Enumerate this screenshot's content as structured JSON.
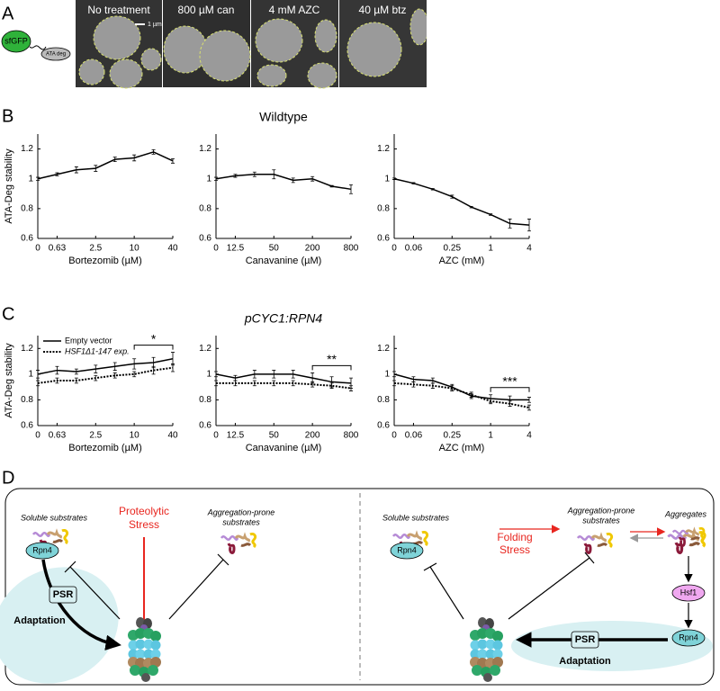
{
  "panel_labels": [
    "A",
    "B",
    "C",
    "D"
  ],
  "panel_a": {
    "construct": {
      "fp": "sfGFP",
      "degron": "ATA deg"
    },
    "images": [
      {
        "title": "No treatment"
      },
      {
        "title": "800 µM can"
      },
      {
        "title": "4 mM AZC"
      },
      {
        "title": "40 µM btz"
      }
    ],
    "scale_bar": "1 µm"
  },
  "chart_data": [
    {
      "type": "line",
      "ylabel": "ATA-Deg stability",
      "xlabel": "Bortezomib (µM)",
      "categories": [
        "0",
        "0.63",
        null,
        "2.5",
        null,
        "10",
        null,
        "40"
      ],
      "ylim": [
        0.6,
        1.3
      ],
      "yticks": [
        0.6,
        0.8,
        1,
        1.2
      ],
      "series": [
        {
          "name": "Wildtype",
          "color": "#000000",
          "style": "solid",
          "values": [
            1.0,
            1.03,
            1.06,
            1.07,
            1.13,
            1.14,
            1.18,
            1.12
          ],
          "errors": [
            0.01,
            0.01,
            0.02,
            0.02,
            0.015,
            0.02,
            0.015,
            0.015
          ]
        }
      ]
    },
    {
      "type": "line",
      "title": "Wildtype",
      "xlabel": "Canavanine (µM)",
      "categories": [
        "0",
        "12.5",
        null,
        "50",
        null,
        "200",
        null,
        "800"
      ],
      "ylim": [
        0.6,
        1.3
      ],
      "yticks": [
        0.6,
        0.8,
        1,
        1.2
      ],
      "series": [
        {
          "name": "Wildtype",
          "color": "#000000",
          "style": "solid",
          "values": [
            1.0,
            1.02,
            1.03,
            1.03,
            0.99,
            1.0,
            0.95,
            0.93
          ],
          "errors": [
            0.01,
            0.01,
            0.015,
            0.03,
            0.015,
            0.015,
            0.005,
            0.03
          ]
        }
      ]
    },
    {
      "type": "line",
      "xlabel": "AZC (mM)",
      "categories": [
        "0",
        "0.06",
        null,
        "0.25",
        null,
        "1",
        null,
        "4"
      ],
      "ylim": [
        0.6,
        1.3
      ],
      "yticks": [
        0.6,
        0.8,
        1,
        1.2
      ],
      "series": [
        {
          "name": "Wildtype",
          "color": "#000000",
          "style": "solid",
          "values": [
            1.0,
            0.97,
            0.93,
            0.88,
            0.81,
            0.76,
            0.7,
            0.69
          ],
          "errors": [
            0.005,
            0.005,
            0.005,
            0.01,
            0.005,
            0.005,
            0.03,
            0.04
          ]
        }
      ]
    },
    {
      "type": "line",
      "ylabel": "ATA-Deg stability",
      "xlabel": "Bortezomib (µM)",
      "legend": "upper left",
      "categories": [
        "0",
        "0.63",
        null,
        "2.5",
        null,
        "10",
        null,
        "40"
      ],
      "ylim": [
        0.6,
        1.3
      ],
      "yticks": [
        0.6,
        0.8,
        1,
        1.2
      ],
      "series": [
        {
          "name": "Empty vector",
          "color": "#000000",
          "style": "solid",
          "values": [
            1.0,
            1.03,
            1.02,
            1.04,
            1.06,
            1.08,
            1.09,
            1.12
          ],
          "errors": [
            0.03,
            0.03,
            0.02,
            0.03,
            0.03,
            0.04,
            0.04,
            0.05
          ]
        },
        {
          "name": "HSF1Δ1-147 exp.",
          "color": "#000000",
          "style": "dotted",
          "values": [
            0.93,
            0.95,
            0.95,
            0.97,
            0.99,
            1.0,
            1.03,
            1.05
          ],
          "errors": [
            0.02,
            0.02,
            0.02,
            0.02,
            0.02,
            0.02,
            0.03,
            0.03
          ]
        }
      ],
      "annotations": [
        {
          "label": "*",
          "span": [
            "10",
            "40"
          ]
        }
      ]
    },
    {
      "type": "line",
      "title": "pCYC1:RPN4",
      "xlabel": "Canavanine (µM)",
      "categories": [
        "0",
        "12.5",
        null,
        "50",
        null,
        "200",
        null,
        "800"
      ],
      "ylim": [
        0.6,
        1.3
      ],
      "yticks": [
        0.6,
        0.8,
        1,
        1.2
      ],
      "series": [
        {
          "name": "Empty vector",
          "color": "#000000",
          "style": "solid",
          "values": [
            1.0,
            0.97,
            1.0,
            1.0,
            1.0,
            0.97,
            0.94,
            0.93
          ],
          "errors": [
            0.02,
            0.02,
            0.03,
            0.03,
            0.03,
            0.04,
            0.04,
            0.04
          ]
        },
        {
          "name": "HSF1Δ1-147 exp.",
          "color": "#000000",
          "style": "dotted",
          "values": [
            0.93,
            0.93,
            0.93,
            0.93,
            0.93,
            0.92,
            0.91,
            0.89
          ],
          "errors": [
            0.02,
            0.02,
            0.02,
            0.02,
            0.02,
            0.02,
            0.02,
            0.02
          ]
        }
      ],
      "annotations": [
        {
          "label": "**",
          "span": [
            "200",
            "800"
          ]
        }
      ]
    },
    {
      "type": "line",
      "xlabel": "AZC (mM)",
      "categories": [
        "0",
        "0.06",
        null,
        "0.25",
        null,
        "1",
        null,
        "4"
      ],
      "ylim": [
        0.6,
        1.3
      ],
      "yticks": [
        0.6,
        0.8,
        1,
        1.2
      ],
      "series": [
        {
          "name": "Empty vector",
          "color": "#000000",
          "style": "solid",
          "values": [
            1.0,
            0.96,
            0.95,
            0.9,
            0.83,
            0.81,
            0.8,
            0.8
          ],
          "errors": [
            0.02,
            0.02,
            0.02,
            0.02,
            0.02,
            0.03,
            0.03,
            0.02
          ]
        },
        {
          "name": "HSF1Δ1-147 exp.",
          "color": "#000000",
          "style": "dotted",
          "values": [
            0.93,
            0.92,
            0.91,
            0.89,
            0.84,
            0.79,
            0.77,
            0.74
          ],
          "errors": [
            0.02,
            0.02,
            0.02,
            0.02,
            0.02,
            0.02,
            0.02,
            0.02
          ]
        }
      ],
      "annotations": [
        {
          "label": "***",
          "span": [
            "1",
            "4"
          ]
        }
      ]
    }
  ],
  "panel_d": {
    "left": {
      "soluble": "Soluble substrates",
      "rpn4": "Rpn4",
      "stress": [
        "Proteolytic",
        "Stress"
      ],
      "aggregation": [
        "Aggregation-prone",
        "substrates"
      ],
      "psr": "PSR",
      "adaptation": "Adaptation"
    },
    "right": {
      "soluble": "Soluble substrates",
      "rpn4": "Rpn4",
      "stress": [
        "Folding",
        "Stress"
      ],
      "aggregation": [
        "Aggregation-prone",
        "substrates"
      ],
      "aggregates": "Aggregates",
      "hsf1": "Hsf1",
      "rpn4_induced": "Rpn4",
      "psr": "PSR",
      "adaptation": "Adaptation"
    }
  }
}
